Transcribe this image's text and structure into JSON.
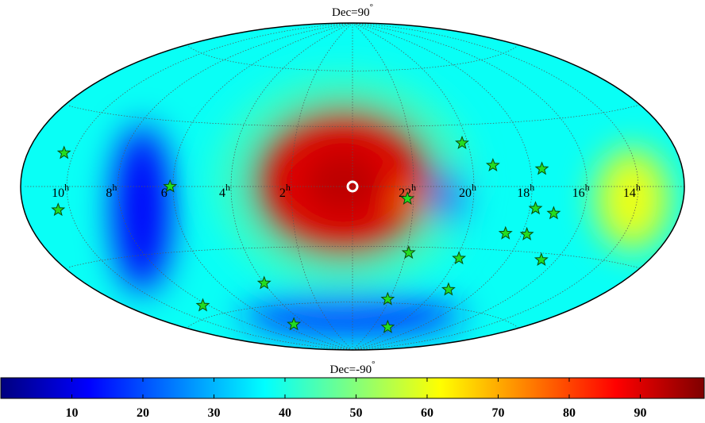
{
  "figure": {
    "type": "all-sky-map",
    "projection": "hammer-aitoff",
    "top_label": "Dec=90",
    "bottom_label": "Dec=-90",
    "degree_symbol": "°",
    "ra_labels": [
      {
        "value": "10",
        "unit": "h",
        "ra_hours": 10
      },
      {
        "value": "8",
        "unit": "h",
        "ra_hours": 8
      },
      {
        "value": "6",
        "unit": "h",
        "ra_hours": 6
      },
      {
        "value": "4",
        "unit": "h",
        "ra_hours": 4
      },
      {
        "value": "2",
        "unit": "h",
        "ra_hours": 2
      },
      {
        "value": "22",
        "unit": "h",
        "ra_hours": 22
      },
      {
        "value": "20",
        "unit": "h",
        "ra_hours": 20
      },
      {
        "value": "18",
        "unit": "h",
        "ra_hours": 18
      },
      {
        "value": "16",
        "unit": "h",
        "ra_hours": 16
      },
      {
        "value": "14",
        "unit": "h",
        "ra_hours": 14
      }
    ],
    "center_marker": {
      "ra_hours": 0,
      "dec_deg": 0,
      "symbol": "white-circle"
    },
    "stars": [
      {
        "ra_hours": 10.4,
        "dec_deg": 13
      },
      {
        "ra_hours": 10.5,
        "dec_deg": -9
      },
      {
        "ra_hours": 6.1,
        "dec_deg": 0
      },
      {
        "ra_hours": 8.3,
        "dec_deg": -55
      },
      {
        "ra_hours": 4.0,
        "dec_deg": -48
      },
      {
        "ra_hours": 5.0,
        "dec_deg": -71
      },
      {
        "ra_hours": 22.2,
        "dec_deg": -6
      },
      {
        "ra_hours": 21.9,
        "dec_deg": -33
      },
      {
        "ra_hours": 22.1,
        "dec_deg": -58
      },
      {
        "ra_hours": 20.6,
        "dec_deg": -74
      },
      {
        "ra_hours": 20.2,
        "dec_deg": 21
      },
      {
        "ra_hours": 19.3,
        "dec_deg": 10
      },
      {
        "ra_hours": 17.6,
        "dec_deg": 8
      },
      {
        "ra_hours": 17.8,
        "dec_deg": -10
      },
      {
        "ra_hours": 17.1,
        "dec_deg": -12
      },
      {
        "ra_hours": 18.6,
        "dec_deg": -22
      },
      {
        "ra_hours": 17.8,
        "dec_deg": -22
      },
      {
        "ra_hours": 16.6,
        "dec_deg": -33
      },
      {
        "ra_hours": 19.9,
        "dec_deg": -35
      },
      {
        "ra_hours": 19.4,
        "dec_deg": -51
      }
    ],
    "heatmap_blobs": [
      {
        "ra_hours": 0.3,
        "dec_deg": 2,
        "rx_deg": 50,
        "ry_deg": 42,
        "value": 97
      },
      {
        "ra_hours": 22.1,
        "dec_deg": -8,
        "rx_deg": 8,
        "ry_deg": 6,
        "value": 65
      },
      {
        "ra_hours": 14.2,
        "dec_deg": -5,
        "rx_deg": 20,
        "ry_deg": 28,
        "value": 60
      },
      {
        "ra_hours": 7.2,
        "dec_deg": -10,
        "rx_deg": 16,
        "ry_deg": 46,
        "value": 12
      },
      {
        "ra_hours": 20.8,
        "dec_deg": -5,
        "rx_deg": 8,
        "ry_deg": 16,
        "value": 22
      },
      {
        "ra_hours": 0.0,
        "dec_deg": -68,
        "rx_deg": 60,
        "ry_deg": 10,
        "value": 15
      }
    ],
    "background_value": 38,
    "colorbar": {
      "min": 0,
      "max": 99,
      "tick_labels": [
        "10",
        "20",
        "30",
        "40",
        "50",
        "60",
        "70",
        "80",
        "90"
      ],
      "ticks": [
        10,
        20,
        30,
        40,
        50,
        60,
        70,
        80,
        90
      ]
    },
    "colormap": [
      "#00007f",
      "#0000ff",
      "#007fff",
      "#00ffff",
      "#7fff7f",
      "#ffff00",
      "#ff7f00",
      "#ff0000",
      "#7f0000"
    ],
    "star_color": "#22dd22",
    "grid_color": "#555555"
  }
}
